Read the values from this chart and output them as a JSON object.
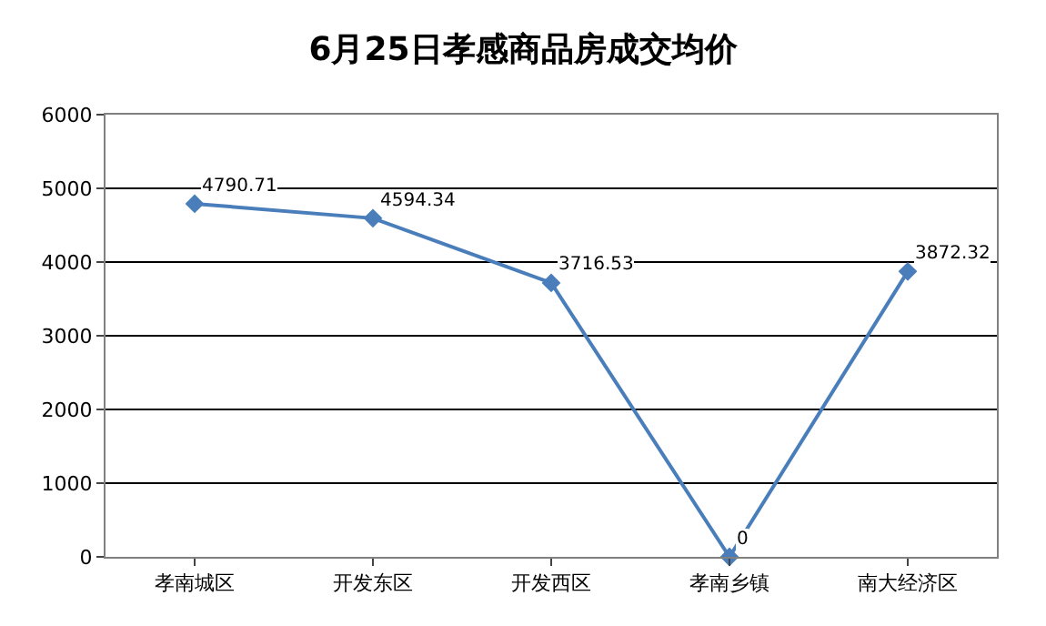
{
  "chart_data": {
    "type": "line",
    "title": "6月25日孝感商品房成交均价",
    "categories": [
      "孝南城区",
      "开发东区",
      "开发西区",
      "孝南乡镇",
      "南大经济区"
    ],
    "series": [
      {
        "color": "#4a7ebb",
        "values": [
          4790.71,
          4594.34,
          3716.53,
          0,
          3872.32
        ]
      }
    ],
    "ylim": [
      0,
      6000
    ],
    "yticks": [
      0,
      1000,
      2000,
      3000,
      4000,
      5000,
      6000
    ],
    "grid": "y",
    "marker": "diamond",
    "line_style": "solid",
    "data_labels": true,
    "legend": false
  }
}
